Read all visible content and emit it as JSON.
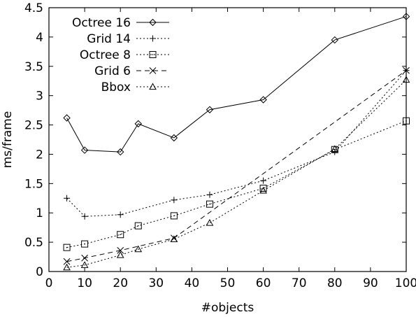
{
  "chart_data": {
    "type": "line",
    "title": "",
    "xlabel": "#objects",
    "ylabel": "ms/frame",
    "xlim": [
      0,
      100
    ],
    "ylim": [
      0,
      4.5
    ],
    "xticks": [
      "0",
      "10",
      "20",
      "30",
      "40",
      "50",
      "60",
      "70",
      "80",
      "90",
      "100"
    ],
    "yticks": [
      "0",
      "0.5",
      "1",
      "1.5",
      "2",
      "2.5",
      "3",
      "3.5",
      "4",
      "4.5"
    ],
    "grid": false,
    "legend_position": "top-left",
    "series": [
      {
        "name": "Octree 16",
        "marker": "diamond",
        "dash": "solid",
        "x": [
          5,
          10,
          20,
          25,
          35,
          45,
          60,
          80,
          100
        ],
        "y": [
          2.62,
          2.07,
          2.04,
          2.52,
          2.28,
          2.76,
          2.93,
          3.95,
          4.35
        ]
      },
      {
        "name": "Grid 14",
        "marker": "plus",
        "dash": "dotted",
        "x": [
          5,
          10,
          20,
          35,
          45,
          60,
          80,
          100
        ],
        "y": [
          1.25,
          0.94,
          0.97,
          1.22,
          1.31,
          1.55,
          2.04,
          3.43
        ]
      },
      {
        "name": "Octree 8",
        "marker": "square",
        "dash": "dotted",
        "x": [
          5,
          10,
          20,
          25,
          35,
          45,
          60,
          80,
          100
        ],
        "y": [
          0.41,
          0.47,
          0.63,
          0.78,
          0.95,
          1.15,
          1.42,
          2.08,
          2.57
        ]
      },
      {
        "name": "Grid 6",
        "marker": "cross",
        "dash": "dashed",
        "x": [
          5,
          10,
          20,
          35,
          100
        ],
        "y": [
          0.17,
          0.23,
          0.36,
          0.57,
          3.43
        ]
      },
      {
        "name": "Bbox",
        "marker": "triangle",
        "dash": "dotted",
        "x": [
          5,
          10,
          20,
          25,
          35,
          45,
          60,
          80,
          100
        ],
        "y": [
          0.07,
          0.11,
          0.28,
          0.38,
          0.55,
          0.83,
          1.38,
          2.09,
          3.27
        ]
      }
    ]
  }
}
